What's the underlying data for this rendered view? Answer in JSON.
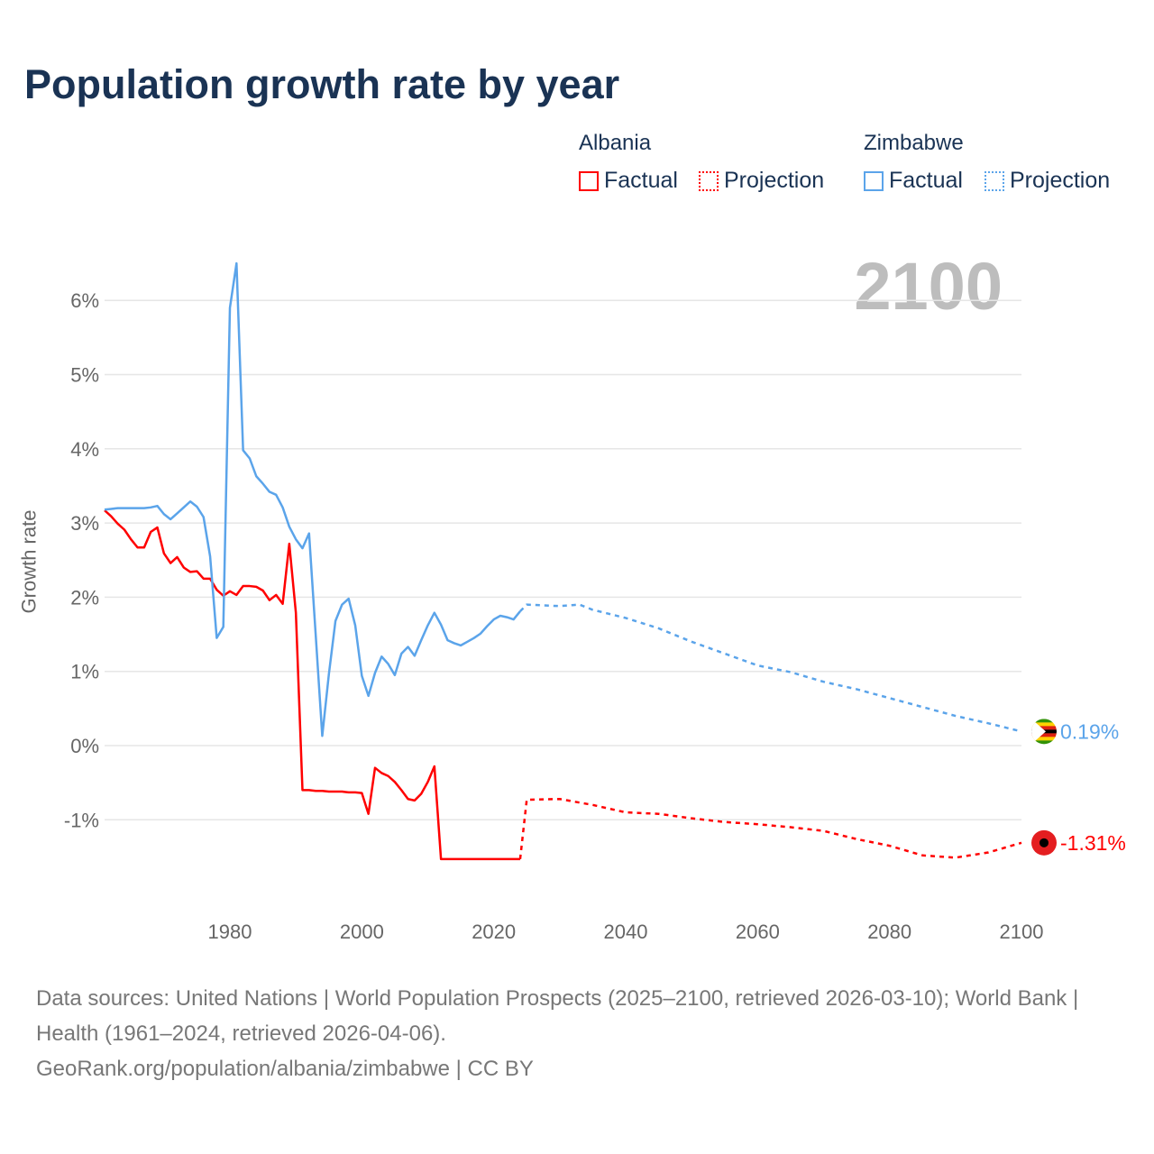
{
  "title": "Population growth rate by year",
  "year_display": "2100",
  "legend": {
    "groups": [
      {
        "name": "Albania",
        "color": "#ff0000",
        "factual": "Factual",
        "projection": "Projection"
      },
      {
        "name": "Zimbabwe",
        "color": "#5ba4ea",
        "factual": "Factual",
        "projection": "Projection"
      }
    ]
  },
  "footer": {
    "sources": "Data sources: United Nations | World Population Prospects (2025–2100, retrieved 2026-03-10); World Bank | Health (1961–2024, retrieved 2026-04-06).",
    "credit": "GeoRank.org/population/albania/zimbabwe | CC BY"
  },
  "chart_data": {
    "type": "line",
    "title": "Population growth rate by year",
    "xlabel": "",
    "ylabel": "Growth rate",
    "xlim": [
      1961,
      2100
    ],
    "ylim": [
      -2,
      6.6
    ],
    "x_ticks": [
      1980,
      2000,
      2020,
      2040,
      2060,
      2080,
      2100
    ],
    "y_ticks": [
      {
        "v": 6,
        "label": "6%"
      },
      {
        "v": 5,
        "label": "5%"
      },
      {
        "v": 4,
        "label": "4%"
      },
      {
        "v": 3,
        "label": "3%"
      },
      {
        "v": 2,
        "label": "2%"
      },
      {
        "v": 1,
        "label": "1%"
      },
      {
        "v": 0,
        "label": "0%"
      },
      {
        "v": -1,
        "label": "-1%"
      }
    ],
    "grid": true,
    "series": [
      {
        "name": "Albania",
        "color": "#ff0000",
        "end_label": "-1.31%",
        "factual": {
          "x": [
            1961,
            1962,
            1963,
            1964,
            1965,
            1966,
            1967,
            1968,
            1969,
            1970,
            1971,
            1972,
            1973,
            1974,
            1975,
            1976,
            1977,
            1978,
            1979,
            1980,
            1981,
            1982,
            1983,
            1984,
            1985,
            1986,
            1987,
            1988,
            1989,
            1990,
            1991,
            1992,
            1993,
            1994,
            1995,
            1996,
            1997,
            1998,
            1999,
            2000,
            2001,
            2002,
            2003,
            2004,
            2005,
            2006,
            2007,
            2008,
            2009,
            2010,
            2011,
            2012,
            2013,
            2014,
            2015,
            2016,
            2017,
            2018,
            2019,
            2020,
            2021,
            2022,
            2023,
            2024
          ],
          "y": [
            3.17,
            3.09,
            2.99,
            2.91,
            2.78,
            2.67,
            2.67,
            2.88,
            2.94,
            2.59,
            2.46,
            2.54,
            2.4,
            2.34,
            2.35,
            2.25,
            2.25,
            2.1,
            2.02,
            2.08,
            2.03,
            2.15,
            2.15,
            2.14,
            2.09,
            1.96,
            2.03,
            1.91,
            2.72,
            1.79,
            -0.6,
            -0.6,
            -0.61,
            -0.61,
            -0.62,
            -0.62,
            -0.62,
            -0.63,
            -0.63,
            -0.64,
            -0.92,
            -0.3,
            -0.37,
            -0.41,
            -0.49,
            -0.6,
            -0.72,
            -0.74,
            -0.65,
            -0.49,
            -0.28,
            -1.53,
            -1.53,
            -1.53,
            -1.53,
            -1.53,
            -1.53,
            -1.53,
            -1.53,
            -1.53,
            -1.53,
            -1.53,
            -1.53,
            -1.53
          ]
        },
        "projection": {
          "x": [
            2025,
            2030,
            2035,
            2040,
            2045,
            2050,
            2055,
            2060,
            2065,
            2070,
            2075,
            2080,
            2085,
            2090,
            2095,
            2100
          ],
          "y": [
            -0.73,
            -0.72,
            -0.8,
            -0.9,
            -0.92,
            -0.98,
            -1.03,
            -1.06,
            -1.1,
            -1.15,
            -1.26,
            -1.35,
            -1.48,
            -1.51,
            -1.44,
            -1.31
          ]
        }
      },
      {
        "name": "Zimbabwe",
        "color": "#5ba4ea",
        "end_label": "0.19%",
        "factual": {
          "x": [
            1961,
            1962,
            1963,
            1964,
            1965,
            1966,
            1967,
            1968,
            1969,
            1970,
            1971,
            1972,
            1973,
            1974,
            1975,
            1976,
            1977,
            1978,
            1979,
            1980,
            1981,
            1982,
            1983,
            1984,
            1985,
            1986,
            1987,
            1988,
            1989,
            1990,
            1991,
            1992,
            1993,
            1994,
            1995,
            1996,
            1997,
            1998,
            1999,
            2000,
            2001,
            2002,
            2003,
            2004,
            2005,
            2006,
            2007,
            2008,
            2009,
            2010,
            2011,
            2012,
            2013,
            2014,
            2015,
            2016,
            2017,
            2018,
            2019,
            2020,
            2021,
            2022,
            2023,
            2024
          ],
          "y": [
            3.18,
            3.19,
            3.2,
            3.2,
            3.2,
            3.2,
            3.2,
            3.21,
            3.23,
            3.12,
            3.05,
            3.13,
            3.21,
            3.29,
            3.22,
            3.08,
            2.55,
            1.45,
            1.6,
            5.9,
            6.5,
            3.98,
            3.87,
            3.63,
            3.53,
            3.42,
            3.38,
            3.21,
            2.95,
            2.78,
            2.66,
            2.86,
            1.5,
            0.13,
            0.96,
            1.68,
            1.9,
            1.98,
            1.62,
            0.94,
            0.67,
            0.98,
            1.2,
            1.1,
            0.95,
            1.24,
            1.33,
            1.21,
            1.42,
            1.62,
            1.79,
            1.63,
            1.42,
            1.38,
            1.35,
            1.4,
            1.45,
            1.51,
            1.61,
            1.7,
            1.75,
            1.73,
            1.7,
            1.81
          ]
        },
        "projection": {
          "x": [
            2025,
            2030,
            2033,
            2035,
            2040,
            2045,
            2050,
            2055,
            2060,
            2065,
            2070,
            2075,
            2080,
            2085,
            2090,
            2095,
            2100
          ],
          "y": [
            1.9,
            1.88,
            1.9,
            1.83,
            1.72,
            1.58,
            1.4,
            1.24,
            1.08,
            0.99,
            0.86,
            0.76,
            0.64,
            0.52,
            0.4,
            0.3,
            0.19
          ]
        }
      }
    ]
  }
}
